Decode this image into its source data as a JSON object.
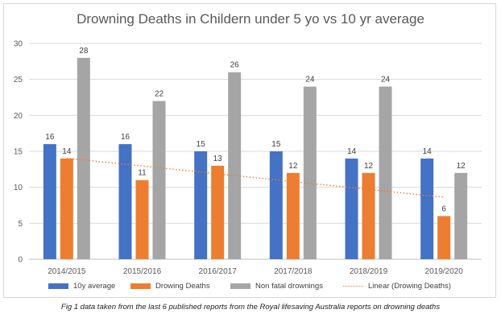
{
  "chart_data": {
    "type": "bar",
    "title": "Drowning Deaths in Childern under 5 yo vs 10 yr average",
    "categories": [
      "2014/2015",
      "2015/2016",
      "2016/2017",
      "2017/2018",
      "2018/2019",
      "2019/2020"
    ],
    "series": [
      {
        "name": "10y average",
        "values": [
          16,
          16,
          15,
          15,
          14,
          14
        ],
        "color": "#4472c4"
      },
      {
        "name": "Drowing Deaths",
        "values": [
          14,
          11,
          13,
          12,
          12,
          6
        ],
        "color": "#ed7d31"
      },
      {
        "name": "Non fatal drownings",
        "values": [
          28,
          22,
          26,
          24,
          24,
          12
        ],
        "color": "#a5a5a5"
      }
    ],
    "trendline": {
      "name": "Linear (Drowing Deaths)",
      "series_index": 1,
      "type": "linear",
      "color": "#ed7d31",
      "style": "dotted"
    },
    "ylim": [
      0,
      30
    ],
    "yticks": [
      0,
      5,
      10,
      15,
      20,
      25,
      30
    ],
    "grid": true,
    "legend_position": "bottom",
    "data_labels": true
  },
  "caption": "Fig 1 data taken from the last 6 published reports from the Royal lifesaving Australia reports on drowning deaths"
}
